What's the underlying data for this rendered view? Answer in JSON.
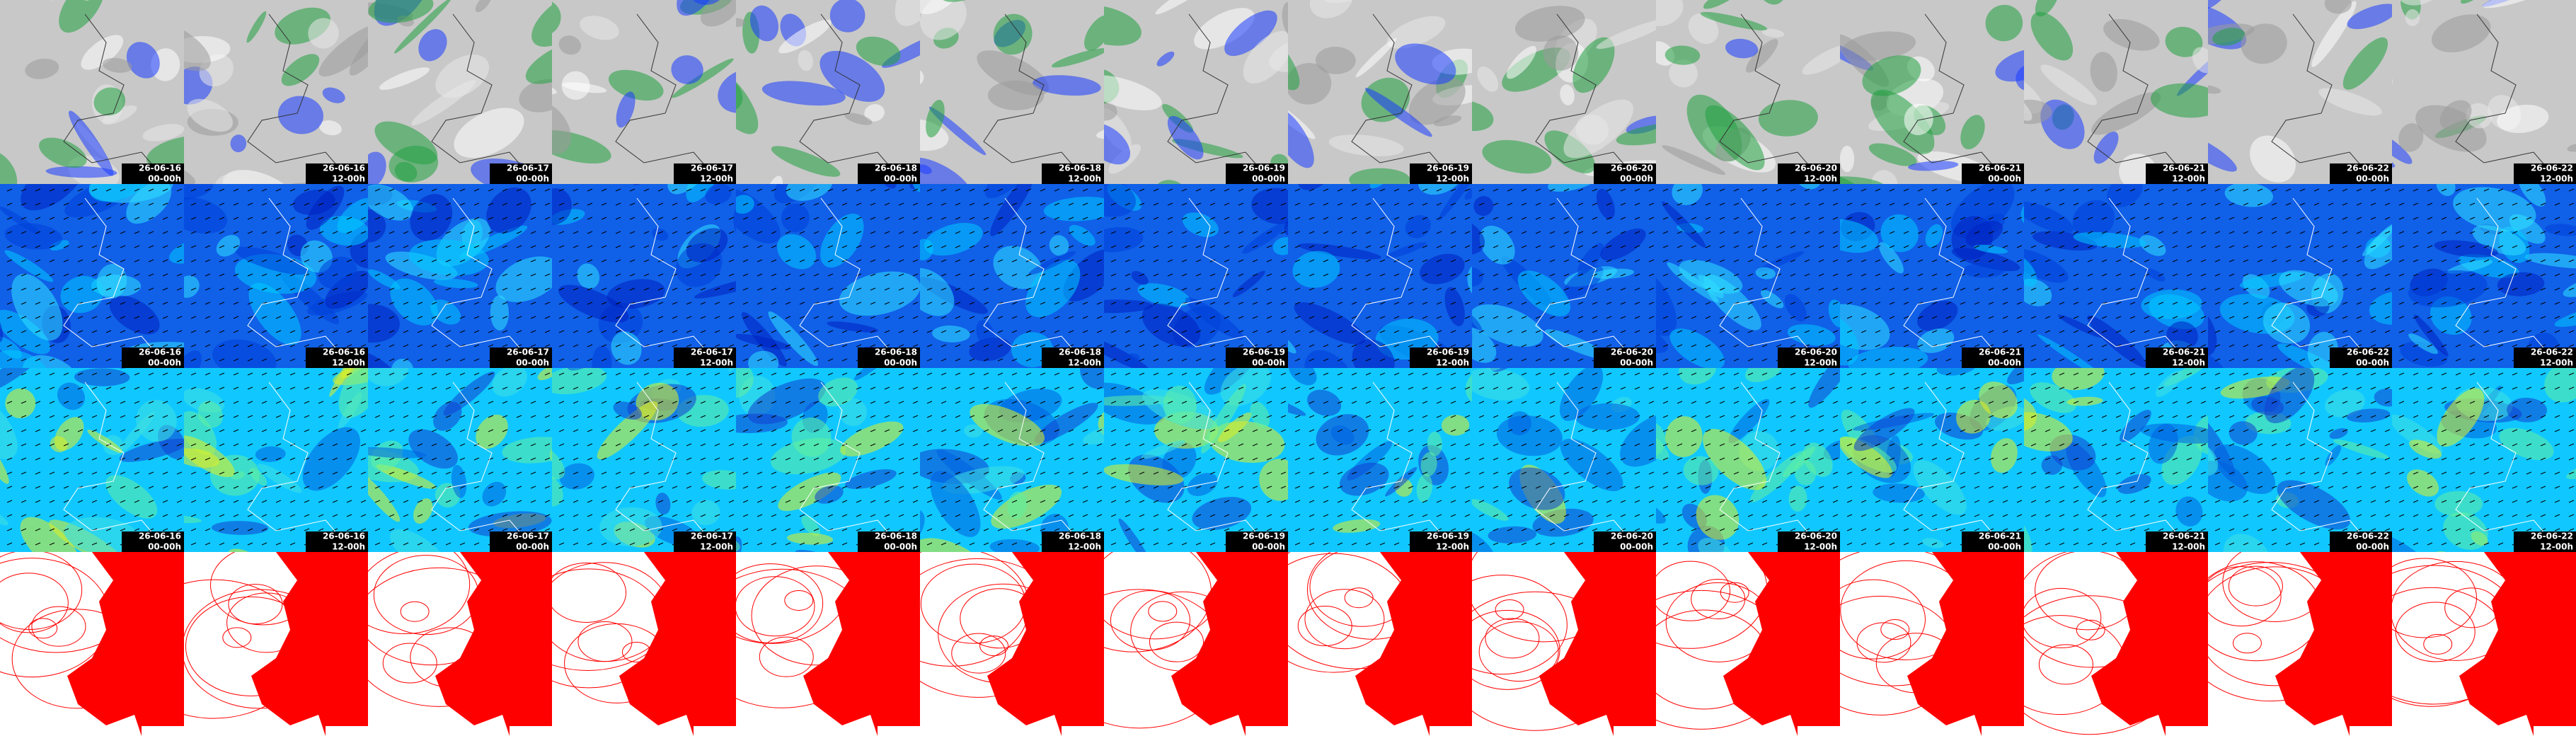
{
  "columns": [
    {
      "date": "26-06-16",
      "time": "00-00h"
    },
    {
      "date": "26-06-16",
      "time": "12-00h"
    },
    {
      "date": "26-06-17",
      "time": "00-00h"
    },
    {
      "date": "26-06-17",
      "time": "12-00h"
    },
    {
      "date": "26-06-18",
      "time": "00-00h"
    },
    {
      "date": "26-06-18",
      "time": "12-00h"
    },
    {
      "date": "26-06-19",
      "time": "00-00h"
    },
    {
      "date": "26-06-19",
      "time": "12-00h"
    },
    {
      "date": "26-06-20",
      "time": "00-00h"
    },
    {
      "date": "26-06-20",
      "time": "12-00h"
    },
    {
      "date": "26-06-21",
      "time": "00-00h"
    },
    {
      "date": "26-06-21",
      "time": "12-00h"
    },
    {
      "date": "26-06-22",
      "time": "00-00h"
    },
    {
      "date": "26-06-22",
      "time": "12-00h"
    }
  ]
}
